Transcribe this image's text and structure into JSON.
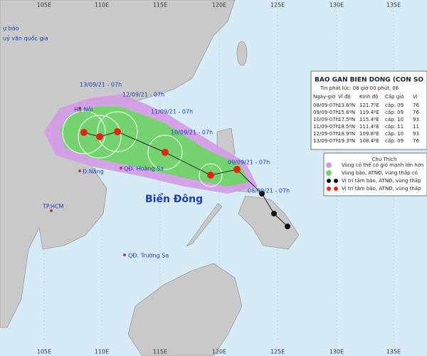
{
  "header": {
    "line1": "ự báo",
    "line2": "uỷ văn quốc gia"
  },
  "longitudes": [
    "105E",
    "110E",
    "115E",
    "120E",
    "125E",
    "130E",
    "135E"
  ],
  "places": [
    "Hà Nội",
    "Đ.Nẵng",
    "QĐ. Hoàng Sa",
    "TP.HCM",
    "QĐ. Trường Sa"
  ],
  "sea_label": "Biển Đông",
  "forecast_labels": [
    "08/09/21 - 07h",
    "09/09/21 - 07h",
    "10/09/21 - 07h",
    "11/09/21 - 07h",
    "12/09/21 - 07h",
    "13/09/21 - 07h"
  ],
  "info": {
    "title": "BAO GAN BIEN DONG (CON SO",
    "issued": "Tin phát lúc: 08 giờ 00 phút, 08",
    "columns": [
      "Ngày-giờ",
      "Vĩ độ",
      "Kinh độ",
      "Cấp gió",
      "Vi"
    ],
    "rows": [
      [
        "08/09-07h",
        "13.6ºN",
        "121.7ºE",
        "cấp: 09",
        "76"
      ],
      [
        "09/09-07h",
        "15.6ºN",
        "119.4ºE",
        "cấp: 09",
        "76"
      ],
      [
        "10/09-07h",
        "17.5ºN",
        "115.4ºE",
        "cấp: 10",
        "93"
      ],
      [
        "11/09-07h",
        "18.5ºN",
        "111.4ºE",
        "cấp: 11",
        "11"
      ],
      [
        "12/09-07h",
        "18.9ºN",
        "109.8ºE",
        "cấp: 10",
        "93"
      ],
      [
        "13/09-07h",
        "19.3ºN",
        "108.4ºE",
        "cấp: 09",
        "76"
      ]
    ]
  },
  "legend": {
    "title": "Chú Thích",
    "items": [
      "Vùng có thể có gió mạnh lớn hơn",
      "Vùng bão, ATNĐ, vùng thấp có",
      "Vị trí tâm bão, ATNĐ, vùng thấp",
      "Vị trí tâm bão, ATNĐ, vùng thấp"
    ]
  }
}
